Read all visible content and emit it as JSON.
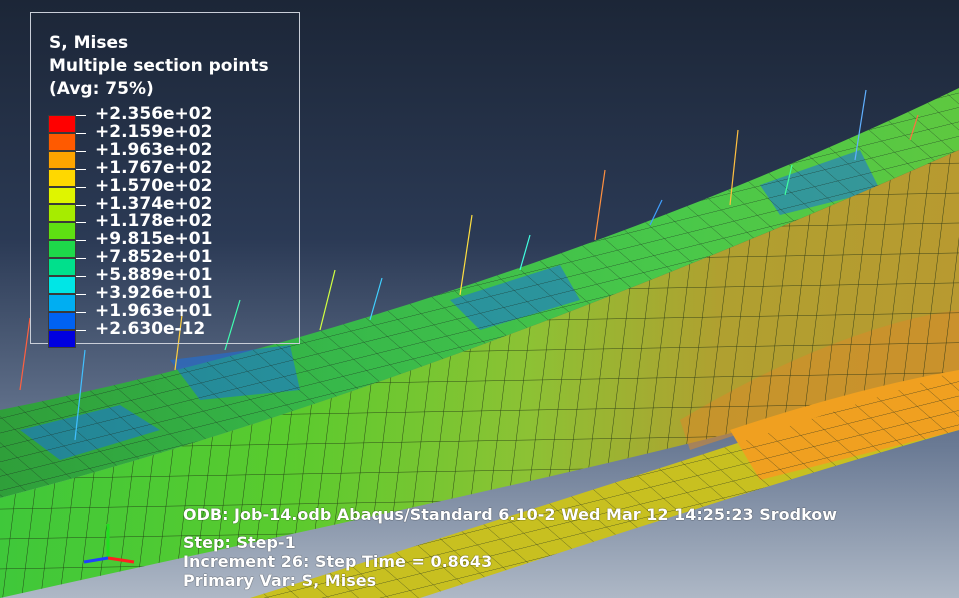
{
  "legend": {
    "title": "S, Mises",
    "subtitle": "Multiple section points",
    "avg": "(Avg: 75%)",
    "values": [
      "+2.356e+02",
      "+2.159e+02",
      "+1.963e+02",
      "+1.767e+02",
      "+1.570e+02",
      "+1.374e+02",
      "+1.178e+02",
      "+9.815e+01",
      "+7.852e+01",
      "+5.889e+01",
      "+3.926e+01",
      "+1.963e+01",
      "+2.630e-12"
    ],
    "colors": [
      "#ff0000",
      "#ff5a00",
      "#ffa500",
      "#ffd800",
      "#dff500",
      "#a6ec00",
      "#5ee012",
      "#1ed84a",
      "#00e08c",
      "#00e6e6",
      "#00aef2",
      "#0062f2",
      "#0000e0"
    ]
  },
  "info": {
    "odb": "ODB: Job-14.odb    Abaqus/Standard 6.10-2    Wed Mar 12 14:25:23 Srodkow",
    "step": "Step: Step-1",
    "increment": "Increment      26: Step Time =    0.8643",
    "primary_var": "Primary Var: S, Mises"
  },
  "triad": {
    "x_color": "#ff2020",
    "y_color": "#20e020",
    "z_color": "#2040ff"
  }
}
